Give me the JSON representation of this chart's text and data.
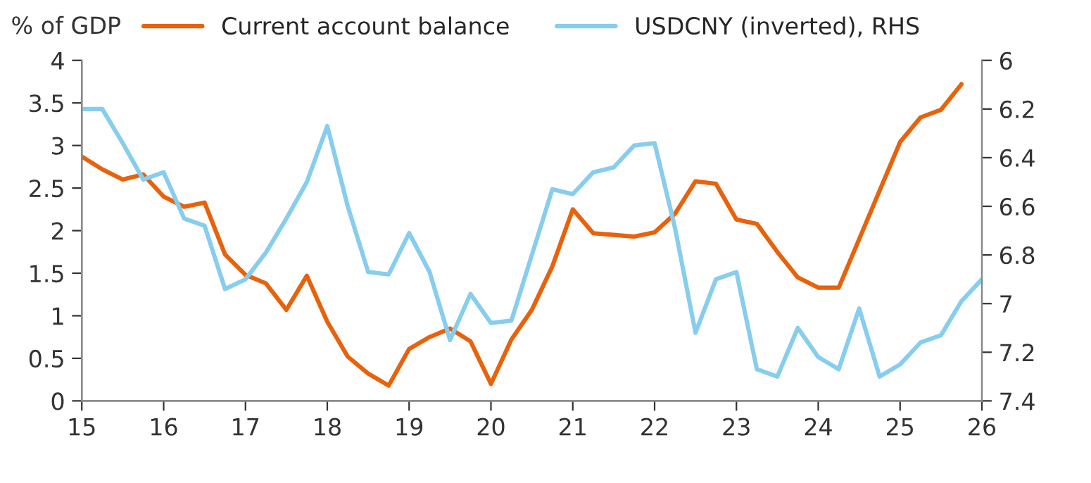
{
  "chart_data": {
    "type": "line",
    "ylabel": "% of GDP",
    "xlim": [
      15,
      26
    ],
    "xticks": [
      15,
      16,
      17,
      18,
      19,
      20,
      21,
      22,
      23,
      24,
      25,
      26
    ],
    "ylim": [
      0,
      4
    ],
    "yticks": [
      0,
      0.5,
      1,
      1.5,
      2,
      2.5,
      3,
      3.5,
      4
    ],
    "y2lim": [
      7.4,
      6
    ],
    "y2ticks": [
      6,
      6.2,
      6.4,
      6.6,
      6.8,
      7,
      7.2,
      7.4
    ],
    "grid": false,
    "legend": "top",
    "line_style": "solid",
    "series": [
      {
        "name": "Current account balance",
        "color": "#e8620c",
        "x": [
          15,
          15.25,
          15.5,
          15.75,
          16,
          16.25,
          16.5,
          16.75,
          17,
          17.25,
          17.5,
          17.75,
          18,
          18.25,
          18.5,
          18.75,
          19,
          19.25,
          19.5,
          19.75,
          20,
          20.25,
          20.5,
          20.75,
          21,
          21.25,
          21.5,
          21.75,
          22,
          22.25,
          22.5,
          22.75,
          23,
          23.25,
          23.5,
          23.75,
          24,
          24.25,
          24.5,
          24.75,
          25,
          25.25,
          25.5,
          25.75
        ],
        "values": [
          2.87,
          2.72,
          2.6,
          2.66,
          2.4,
          2.28,
          2.33,
          1.72,
          1.48,
          1.38,
          1.07,
          1.47,
          0.93,
          0.52,
          0.32,
          0.18,
          0.61,
          0.75,
          0.85,
          0.7,
          0.2,
          0.72,
          1.07,
          1.58,
          2.25,
          1.97,
          1.95,
          1.93,
          1.98,
          2.2,
          2.58,
          2.55,
          2.13,
          2.08,
          1.75,
          1.45,
          1.33,
          1.33,
          1.9,
          2.47,
          3.04,
          3.33,
          3.42,
          3.72
        ]
      },
      {
        "name": "USDCNY (inverted), RHS",
        "color": "#87cdee",
        "axis": "y2",
        "x": [
          15,
          15.25,
          15.5,
          15.75,
          16,
          16.25,
          16.5,
          16.75,
          17,
          17.25,
          17.5,
          17.75,
          18,
          18.25,
          18.5,
          18.75,
          19,
          19.25,
          19.5,
          19.75,
          20,
          20.25,
          20.5,
          20.75,
          21,
          21.25,
          21.5,
          21.75,
          22,
          22.25,
          22.5,
          22.75,
          23,
          23.25,
          23.5,
          23.75,
          24,
          24.25,
          24.5,
          24.75,
          25,
          25.25,
          25.5,
          25.75,
          26
        ],
        "values": [
          6.2,
          6.2,
          6.34,
          6.49,
          6.46,
          6.65,
          6.68,
          6.94,
          6.9,
          6.79,
          6.65,
          6.5,
          6.27,
          6.6,
          6.87,
          6.88,
          6.71,
          6.87,
          7.15,
          6.96,
          7.08,
          7.07,
          6.8,
          6.53,
          6.55,
          6.46,
          6.44,
          6.35,
          6.34,
          6.69,
          7.12,
          6.9,
          6.87,
          7.27,
          7.3,
          7.1,
          7.22,
          7.27,
          7.02,
          7.3,
          7.25,
          7.16,
          7.13,
          6.99,
          6.9
        ]
      }
    ]
  }
}
